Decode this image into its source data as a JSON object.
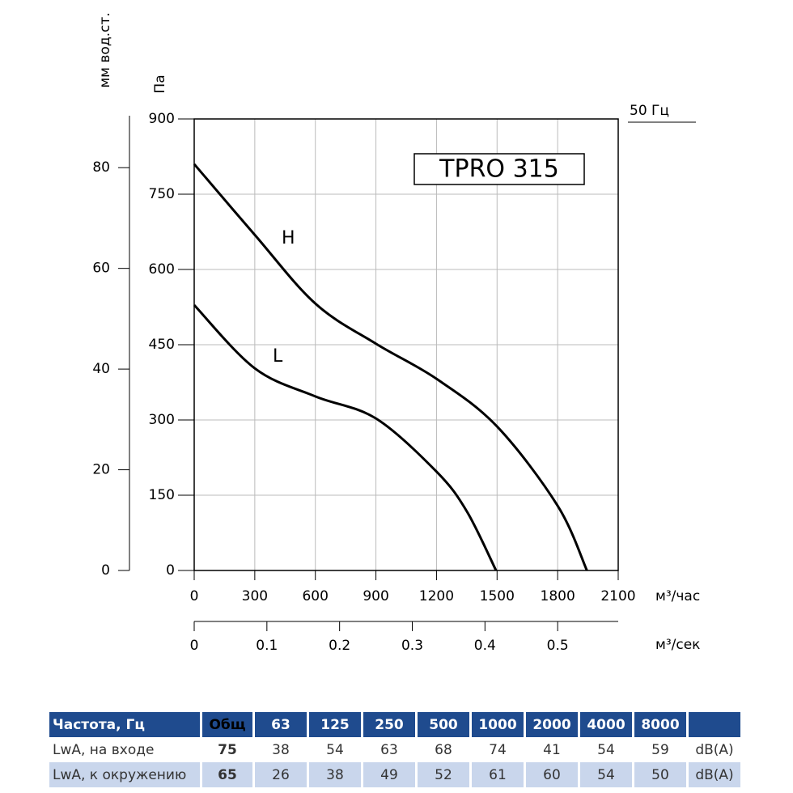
{
  "chart_data": {
    "type": "line",
    "title": "TPRO 315",
    "frequency_label": "50 Гц",
    "y_label": "Па",
    "y2_label": "мм вод.ст.",
    "x_label": "м³/час",
    "x2_label": "м³/сек",
    "xlim": [
      0,
      2100
    ],
    "xticks": [
      0,
      300,
      600,
      900,
      1200,
      1500,
      1800,
      2100
    ],
    "x2lim": [
      0,
      0.5833
    ],
    "x2ticks": [
      0,
      0.1,
      0.2,
      0.3,
      0.4,
      0.5
    ],
    "ylim": [
      0,
      900
    ],
    "yticks": [
      0,
      150,
      300,
      450,
      600,
      750,
      900
    ],
    "y2lim": [
      0,
      90
    ],
    "y2ticks": [
      0,
      20,
      40,
      60,
      80
    ],
    "grid": true,
    "series": [
      {
        "name": "H",
        "color": "#000000",
        "x": [
          0,
          300,
          600,
          900,
          1200,
          1500,
          1800,
          1945
        ],
        "values": [
          810,
          669,
          532,
          452,
          382,
          287,
          129,
          0
        ]
      },
      {
        "name": "L",
        "color": "#000000",
        "x": [
          0,
          300,
          600,
          900,
          1200,
          1350,
          1495
        ],
        "values": [
          529,
          403,
          347,
          303,
          197,
          118,
          0
        ]
      }
    ]
  },
  "table": {
    "header": [
      "Частота, Гц",
      "Общ",
      "63",
      "125",
      "250",
      "500",
      "1000",
      "2000",
      "4000",
      "8000"
    ],
    "rows": [
      [
        "LwA, на входе",
        75,
        38,
        54,
        63,
        68,
        74,
        41,
        54,
        59,
        "dB(A)"
      ],
      [
        "LwA, к окружению",
        65,
        26,
        38,
        49,
        52,
        61,
        60,
        54,
        50,
        "dB(A)"
      ]
    ]
  }
}
